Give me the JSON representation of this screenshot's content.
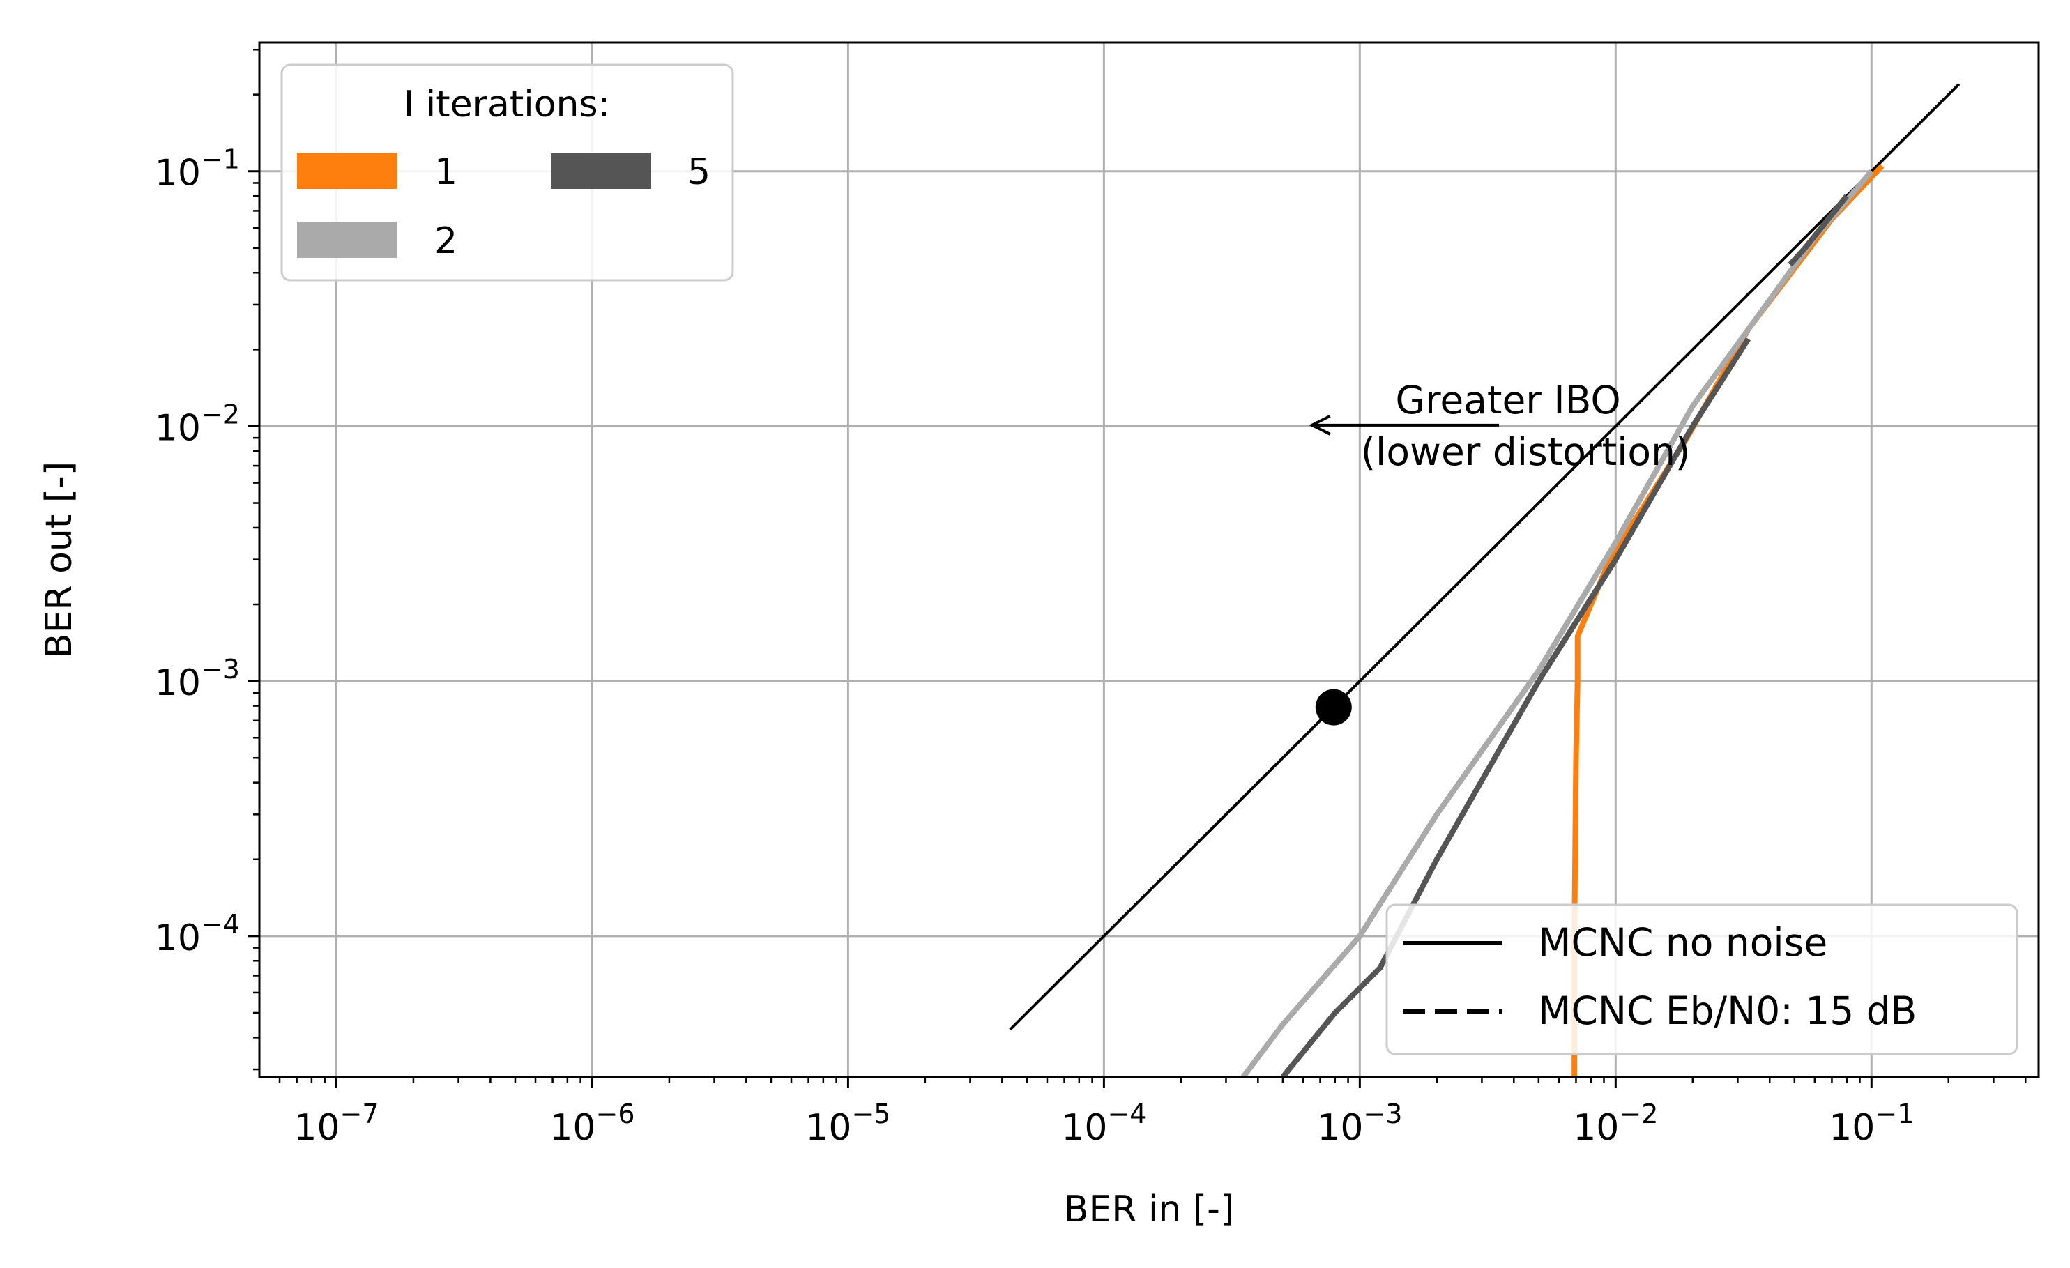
{
  "chart_data": {
    "type": "line",
    "xlabel": "BER in [-]",
    "ylabel": "BER out [-]",
    "x_scale": "log",
    "y_scale": "log",
    "xlim": [
      5e-08,
      0.45
    ],
    "ylim": [
      2.8e-05,
      0.32
    ],
    "grid": true,
    "x_ticks": [
      {
        "value": 1e-07,
        "base": "10",
        "exp": "−7"
      },
      {
        "value": 1e-06,
        "base": "10",
        "exp": "−6"
      },
      {
        "value": 1e-05,
        "base": "10",
        "exp": "−5"
      },
      {
        "value": 0.0001,
        "base": "10",
        "exp": "−4"
      },
      {
        "value": 0.001,
        "base": "10",
        "exp": "−3"
      },
      {
        "value": 0.01,
        "base": "10",
        "exp": "−2"
      },
      {
        "value": 0.1,
        "base": "10",
        "exp": "−1"
      }
    ],
    "y_ticks": [
      {
        "value": 0.0001,
        "base": "10",
        "exp": "−4"
      },
      {
        "value": 0.001,
        "base": "10",
        "exp": "−3"
      },
      {
        "value": 0.01,
        "base": "10",
        "exp": "−2"
      },
      {
        "value": 0.1,
        "base": "10",
        "exp": "−1"
      }
    ],
    "reference_line": {
      "x": [
        4.3e-05,
        0.22
      ],
      "y": [
        4.3e-05,
        0.22
      ],
      "color": "#000000"
    },
    "marker_point": {
      "x": 0.00079,
      "y": 0.00079,
      "color": "#000000"
    },
    "series": [
      {
        "name": "1",
        "color": "#ff7f0e",
        "x": [
          0.0069,
          0.0069,
          0.007,
          0.0071,
          0.0071,
          0.0095,
          0.019,
          0.033,
          0.07,
          0.11
        ],
        "y": [
          2.8e-05,
          0.0001,
          0.0005,
          0.001,
          0.0015,
          0.003,
          0.009,
          0.024,
          0.065,
          0.105
        ]
      },
      {
        "name": "2",
        "color": "#aaaaaa",
        "x": [
          0.00035,
          0.0005,
          0.001,
          0.002,
          0.005,
          0.01,
          0.02,
          0.035,
          0.06,
          0.1
        ],
        "y": [
          2.8e-05,
          4.5e-05,
          0.0001,
          0.0003,
          0.0011,
          0.0035,
          0.012,
          0.026,
          0.055,
          0.1
        ]
      },
      {
        "name": "5",
        "color": "#555555",
        "x": [
          0.0005,
          0.0008,
          0.0012,
          0.002,
          0.005,
          0.01,
          0.02,
          0.033
        ],
        "y": [
          2.8e-05,
          5e-05,
          7.5e-05,
          0.0002,
          0.001,
          0.003,
          0.01,
          0.022
        ],
        "extra_segment": {
          "x": [
            0.048,
            0.055,
            0.08
          ],
          "y": [
            0.043,
            0.05,
            0.08
          ]
        }
      }
    ],
    "legend_color": {
      "title": "I iterations:",
      "placement": "upper-left",
      "entries": [
        {
          "label": "1",
          "color": "#ff7f0e"
        },
        {
          "label": "2",
          "color": "#aaaaaa"
        },
        {
          "label": "5",
          "color": "#555555"
        }
      ]
    },
    "legend_style": {
      "placement": "lower-right",
      "entries": [
        {
          "label": "MCNC no noise",
          "dash": "solid"
        },
        {
          "label": "MCNC Eb/N0: 15 dB",
          "dash": "dashed"
        }
      ]
    },
    "annotation": {
      "line1": "Greater IBO",
      "line2": "(lower distortion)",
      "arrow_from": {
        "x": 0.0035,
        "y": 0.0101
      },
      "arrow_to": {
        "x": 0.00065,
        "y": 0.0101
      }
    }
  }
}
